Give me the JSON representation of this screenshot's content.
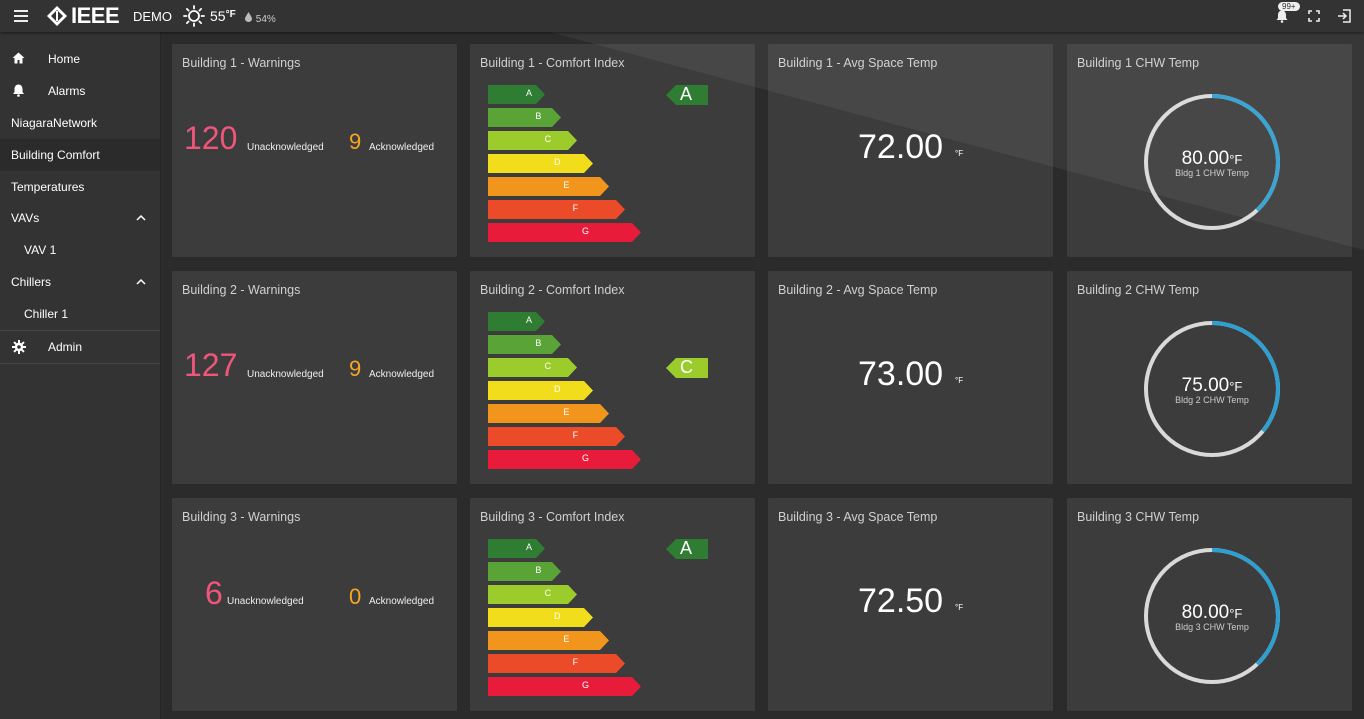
{
  "header": {
    "brand": "IEEE",
    "site": "DEMO",
    "temperature": "55",
    "temperature_unit": "°F",
    "humidity": "54%",
    "notifications_badge": "99+"
  },
  "sidebar": {
    "items": [
      {
        "label": "Home",
        "icon": "home-icon"
      },
      {
        "label": "Alarms",
        "icon": "bell-icon"
      },
      {
        "label": "NiagaraNetwork"
      },
      {
        "label": "Building Comfort",
        "active": true
      },
      {
        "label": "Temperatures"
      },
      {
        "label": "VAVs",
        "expanded": true
      },
      {
        "label": "VAV 1"
      },
      {
        "label": "Chillers",
        "expanded": true
      },
      {
        "label": "Chiller 1"
      },
      {
        "label": "Admin",
        "icon": "gear-icon"
      }
    ]
  },
  "rating_scale": {
    "grades": [
      "A",
      "B",
      "C",
      "D",
      "E",
      "F",
      "G"
    ],
    "colors": [
      "#2f7d32",
      "#5aa336",
      "#9ccc2c",
      "#f2dd1c",
      "#f2951d",
      "#ec4b2a",
      "#e81c3a"
    ]
  },
  "buildings": [
    {
      "warnings_title": "Building 1 - Warnings",
      "unacknowledged": "120",
      "unacknowledged_label": "Unacknowledged",
      "acknowledged": "9",
      "acknowledged_label": "Acknowledged",
      "comfort_title": "Building 1 - Comfort Index",
      "comfort_grade": "A",
      "avg_title": "Building 1 - Avg Space Temp",
      "avg_value": "72.00",
      "avg_unit": "°F",
      "chw_title": "Building 1 CHW Temp",
      "chw_value": "80.00",
      "chw_unit": "°F",
      "chw_label": "Bldg 1 CHW Temp",
      "chw_fraction": 0.38
    },
    {
      "warnings_title": "Building 2 - Warnings",
      "unacknowledged": "127",
      "unacknowledged_label": "Unacknowledged",
      "acknowledged": "9",
      "acknowledged_label": "Acknowledged",
      "comfort_title": "Building 2 - Comfort Index",
      "comfort_grade": "C",
      "avg_title": "Building 2 - Avg Space Temp",
      "avg_value": "73.00",
      "avg_unit": "°F",
      "chw_title": "Building 2 CHW Temp",
      "chw_value": "75.00",
      "chw_unit": "°F",
      "chw_label": "Bldg 2 CHW Temp",
      "chw_fraction": 0.36
    },
    {
      "warnings_title": "Building 3 - Warnings",
      "unacknowledged": "6",
      "unacknowledged_label": "Unacknowledged",
      "acknowledged": "0",
      "acknowledged_label": "Acknowledged",
      "comfort_title": "Building 3 - Comfort Index",
      "comfort_grade": "A",
      "avg_title": "Building 3 - Avg Space Temp",
      "avg_value": "72.50",
      "avg_unit": "°F",
      "chw_title": "Building 3 CHW Temp",
      "chw_value": "80.00",
      "chw_unit": "°F",
      "chw_label": "Bldg 3 CHW Temp",
      "chw_fraction": 0.38
    }
  ],
  "colors": {
    "unacknowledged": "#f0557a",
    "acknowledged": "#f5a623",
    "gauge_fill": "#2e9fd1",
    "gauge_track": "#d9d9d9"
  }
}
